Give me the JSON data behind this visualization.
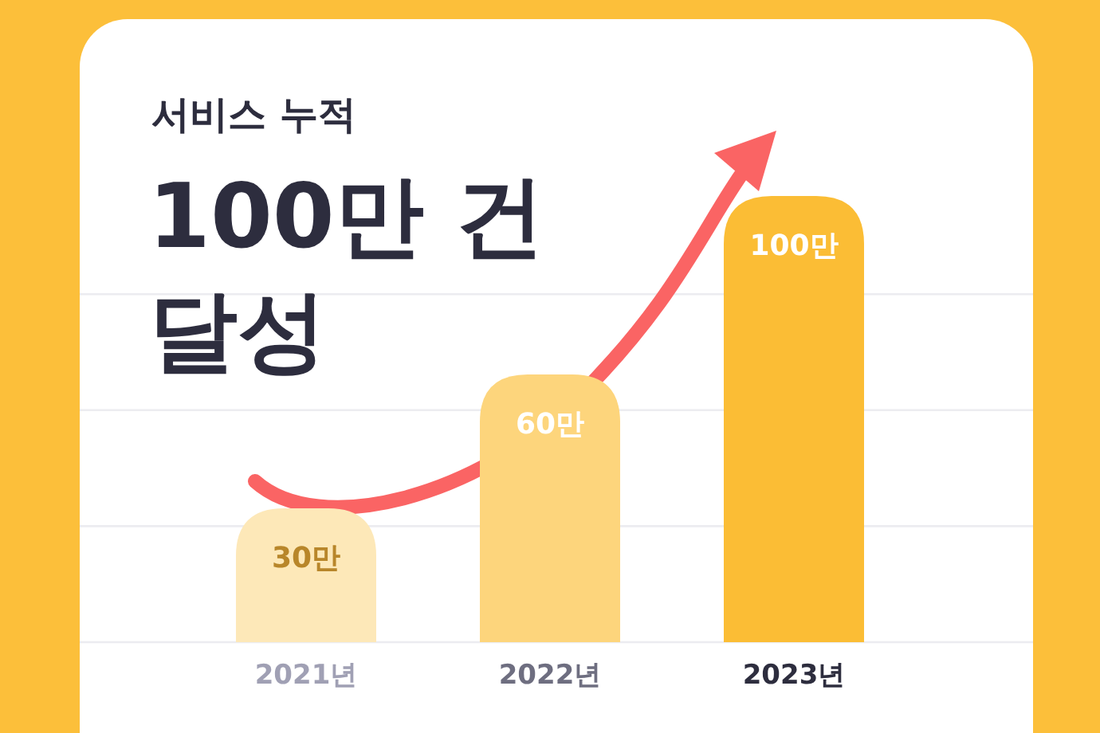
{
  "chart_data": {
    "type": "bar",
    "title": "서비스 누적",
    "subtitle": "100만 건 달성",
    "categories": [
      "2021년",
      "2022년",
      "2023년"
    ],
    "values": [
      30,
      60,
      100
    ],
    "colors": [
      "#fde8b8",
      "#fdd57c",
      "#fbbd35"
    ],
    "value_labels": [
      "30만",
      "60만",
      "100만"
    ],
    "ylim": [
      0,
      140
    ],
    "yticks": [
      {
        "value": 0,
        "label": null
      },
      {
        "value": 26,
        "label": null
      },
      {
        "value": 52,
        "label": null
      },
      {
        "value": 78,
        "label": null
      }
    ],
    "grid": "y",
    "tick_labels": "x"
  }
}
